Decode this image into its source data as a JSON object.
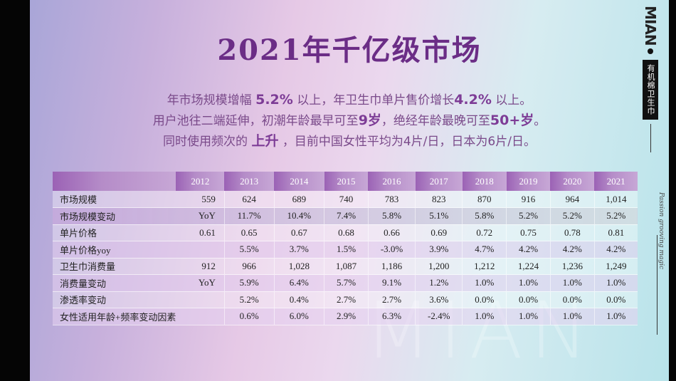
{
  "title": "2021年千亿级市场",
  "subtitle": {
    "line1": {
      "a": "年市场规模增幅 ",
      "b": "5.2%",
      "c": " 以上，年卫生巾单片售价增长",
      "d": "4.2%",
      "e": " 以上。"
    },
    "line2": {
      "a": "用户池往二端延伸，初潮年龄最早可至",
      "b": "9岁",
      "c": "，绝经年龄最晚可至",
      "d": "50+岁",
      "e": "。"
    },
    "line3": {
      "a": "同时使用频次的 ",
      "b": "上升",
      "c": " ，目前中国女性平均为4片/日，日本为6片/日。"
    }
  },
  "brand": {
    "logo": "MIAN",
    "tag": "有机棉卫生巾",
    "signature": "Passion grooving magic"
  },
  "watermark": "MIAN",
  "table": {
    "headers": [
      "",
      "2012",
      "2013",
      "2014",
      "2015",
      "2016",
      "2017",
      "2018",
      "2019",
      "2020",
      "2021"
    ],
    "rows": [
      {
        "label": "市场规模",
        "values": [
          "559",
          "624",
          "689",
          "740",
          "783",
          "823",
          "870",
          "916",
          "964",
          "1,014"
        ]
      },
      {
        "label": "市场规模变动",
        "values": [
          "YoY",
          "11.7%",
          "10.4%",
          "7.4%",
          "5.8%",
          "5.1%",
          "5.8%",
          "5.2%",
          "5.2%",
          "5.2%"
        ]
      },
      {
        "label": "单片价格",
        "values": [
          "0.61",
          "0.65",
          "0.67",
          "0.68",
          "0.66",
          "0.69",
          "0.72",
          "0.75",
          "0.78",
          "0.81"
        ]
      },
      {
        "label": "单片价格yoy",
        "values": [
          "",
          "5.5%",
          "3.7%",
          "1.5%",
          "-3.0%",
          "3.9%",
          "4.7%",
          "4.2%",
          "4.2%",
          "4.2%"
        ]
      },
      {
        "label": "卫生巾消费量",
        "values": [
          "912",
          "966",
          "1,028",
          "1,087",
          "1,186",
          "1,200",
          "1,212",
          "1,224",
          "1,236",
          "1,249"
        ]
      },
      {
        "label": "消费量变动",
        "values": [
          "YoY",
          "5.9%",
          "6.4%",
          "5.7%",
          "9.1%",
          "1.2%",
          "1.0%",
          "1.0%",
          "1.0%",
          "1.0%"
        ]
      },
      {
        "label": "渗透率变动",
        "values": [
          "",
          "5.2%",
          "0.4%",
          "2.7%",
          "2.7%",
          "3.6%",
          "0.0%",
          "0.0%",
          "0.0%",
          "0.0%"
        ]
      },
      {
        "label": "女性适用年龄+频率变动因素",
        "values": [
          "",
          "0.6%",
          "6.0%",
          "2.9%",
          "6.3%",
          "-2.4%",
          "1.0%",
          "1.0%",
          "1.0%",
          "1.0%"
        ]
      }
    ]
  }
}
